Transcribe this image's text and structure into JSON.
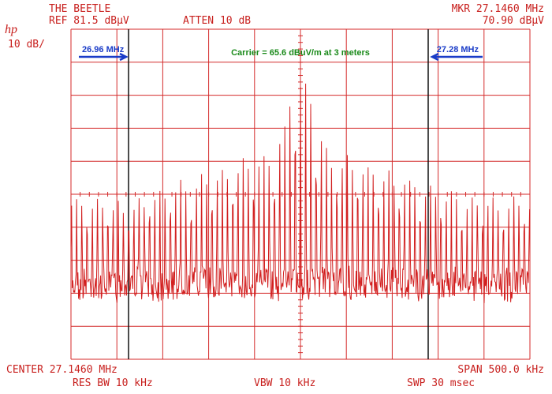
{
  "header": {
    "title": "THE BEETLE",
    "reference": "REF 81.5 dBµV",
    "attenuation": "ATTEN 10 dB",
    "marker_frequency": "MKR 27.1460 MHz",
    "marker_level": "70.90 dBµV",
    "logo": "hp",
    "scale": "10 dB/"
  },
  "annotations": {
    "left_marker": "26.96 MHz",
    "right_marker": "27.28 MHz",
    "carrier": "Carrier = 65.6 dBuV/m at 3 meters"
  },
  "footer": {
    "center": "CENTER 27.1460 MHz",
    "span": "SPAN 500.0 kHz",
    "resolution_bandwidth": "RES BW 10 kHz",
    "video_bandwidth": "VBW 10 kHz",
    "sweep": "SWP 30 msec"
  }
}
